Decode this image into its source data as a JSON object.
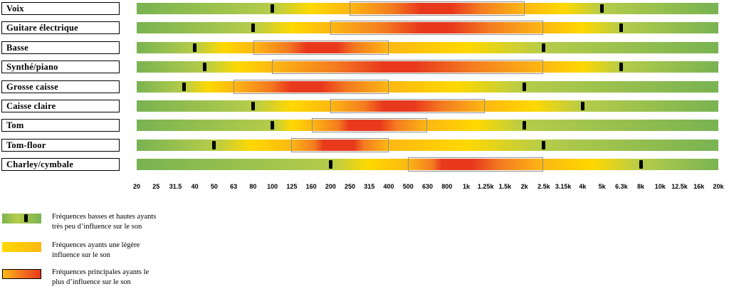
{
  "chart_data": {
    "type": "heatmap",
    "title": "",
    "freq_min": 20,
    "freq_max": 20000,
    "axis_ticks": [
      "20",
      "25",
      "31.5",
      "40",
      "50",
      "63",
      "80",
      "100",
      "125",
      "160",
      "200",
      "250",
      "315",
      "400",
      "500",
      "630",
      "800",
      "1k",
      "1.25k",
      "1.5k",
      "2k",
      "2.5k",
      "3.15k",
      "4k",
      "5k",
      "6.3k",
      "8k",
      "10k",
      "12.5k",
      "16k",
      "20k"
    ],
    "rows": [
      {
        "label": "Voix",
        "low_marker": 100,
        "main_start": 250,
        "peak": 700,
        "main_end": 2000,
        "high_marker": 5000
      },
      {
        "label": "Guitare électrique",
        "low_marker": 80,
        "main_start": 200,
        "peak": 700,
        "main_end": 2500,
        "high_marker": 6300
      },
      {
        "label": "Basse",
        "low_marker": 40,
        "main_start": 80,
        "peak": 180,
        "main_end": 400,
        "high_marker": 2500
      },
      {
        "label": "Synthé/piano",
        "low_marker": 45,
        "main_start": 100,
        "peak": 450,
        "main_end": 2500,
        "high_marker": 6300
      },
      {
        "label": "Grosse caisse",
        "low_marker": 35,
        "main_start": 63,
        "peak": 150,
        "main_end": 400,
        "high_marker": 2000
      },
      {
        "label": "Caisse claire",
        "low_marker": 80,
        "main_start": 200,
        "peak": 450,
        "main_end": 1250,
        "high_marker": 4000
      },
      {
        "label": "Tom",
        "low_marker": 100,
        "main_start": 160,
        "peak": 300,
        "main_end": 630,
        "high_marker": 2000
      },
      {
        "label": "Tom-floor",
        "low_marker": 50,
        "main_start": 125,
        "peak": 220,
        "main_end": 400,
        "high_marker": 2500
      },
      {
        "label": "Charley/cymbale",
        "low_marker": 200,
        "main_start": 500,
        "peak": 900,
        "main_end": 2500,
        "high_marker": 8000
      }
    ],
    "colors": {
      "green": "#79b352",
      "yellow_green": "#b5cc4a",
      "yellow": "#ffd800",
      "gold": "#fcb813",
      "orange": "#f47b20",
      "red": "#e8391d",
      "marker_black": "#000000",
      "outline_gray": "#8f8f8f"
    }
  },
  "legend": [
    {
      "line1": "Fréquences basses et hautes ayants",
      "line2": "très peu d’influence sur le son",
      "swatch": "green-gradient-with-marker"
    },
    {
      "line1": "Fréquences ayants une légère",
      "line2": "influence sur le son",
      "swatch": "yellow-bar"
    },
    {
      "line1": "Fréquences principales ayants le",
      "line2": "plus d’influence sur le son",
      "swatch": "orange-red-outlined-bar"
    }
  ]
}
